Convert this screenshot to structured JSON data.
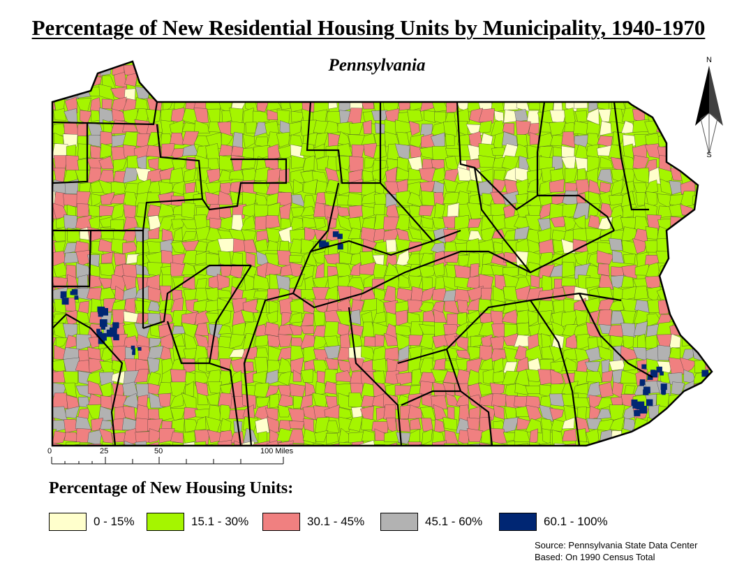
{
  "map": {
    "title": "Percentage of New Residential Housing Units by Municipality, 1940-1970",
    "subtitle": "Pennsylvania",
    "north_arrow": {
      "north_label": "N",
      "south_label": "S"
    },
    "scale_bar": {
      "labels": [
        "0",
        "25",
        "50",
        "100 Miles"
      ]
    },
    "legend": {
      "title": "Percentage of New Housing Units:",
      "classes": [
        {
          "label": "0 - 15%",
          "color": "#ffffcc"
        },
        {
          "label": "15.1 - 30%",
          "color": "#a5f500"
        },
        {
          "label": "30.1 - 45%",
          "color": "#f08080"
        },
        {
          "label": "45.1 - 60%",
          "color": "#b2b2b2"
        },
        {
          "label": "60.1 - 100%",
          "color": "#002673"
        }
      ]
    },
    "source_lines": [
      "Source: Pennsylvania State Data Center",
      "Based: On 1990 Census Total"
    ]
  }
}
